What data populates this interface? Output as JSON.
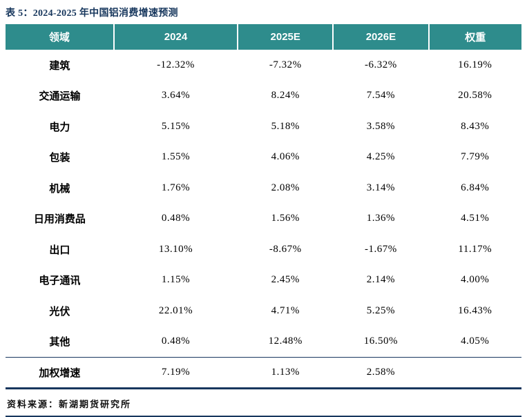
{
  "title": "表 5：2024-2025 年中国铝消费增速预测",
  "source": "资料来源：新湖期货研究所",
  "colors": {
    "header_bg": "#2E8C8C",
    "header_text": "#FFFFFF",
    "title_text": "#16365C",
    "rule": "#17365D"
  },
  "table": {
    "headers": [
      "领域",
      "2024",
      "2025E",
      "2026E",
      "权重"
    ],
    "rows": [
      {
        "label": "建筑",
        "values": [
          "-12.32%",
          "-7.32%",
          "-6.32%",
          "16.19%"
        ]
      },
      {
        "label": "交通运输",
        "values": [
          "3.64%",
          "8.24%",
          "7.54%",
          "20.58%"
        ]
      },
      {
        "label": "电力",
        "values": [
          "5.15%",
          "5.18%",
          "3.58%",
          "8.43%"
        ]
      },
      {
        "label": "包装",
        "values": [
          "1.55%",
          "4.06%",
          "4.25%",
          "7.79%"
        ]
      },
      {
        "label": "机械",
        "values": [
          "1.76%",
          "2.08%",
          "3.14%",
          "6.84%"
        ]
      },
      {
        "label": "日用消费品",
        "values": [
          "0.48%",
          "1.56%",
          "1.36%",
          "4.51%"
        ]
      },
      {
        "label": "出口",
        "values": [
          "13.10%",
          "-8.67%",
          "-1.67%",
          "11.17%"
        ]
      },
      {
        "label": "电子通讯",
        "values": [
          "1.15%",
          "2.45%",
          "2.14%",
          "4.00%"
        ]
      },
      {
        "label": "光伏",
        "values": [
          "22.01%",
          "4.71%",
          "5.25%",
          "16.43%"
        ]
      },
      {
        "label": "其他",
        "values": [
          "0.48%",
          "12.48%",
          "16.50%",
          "4.05%"
        ]
      }
    ],
    "summary": {
      "label": "加权增速",
      "values": [
        "7.19%",
        "1.13%",
        "2.58%",
        ""
      ]
    }
  }
}
